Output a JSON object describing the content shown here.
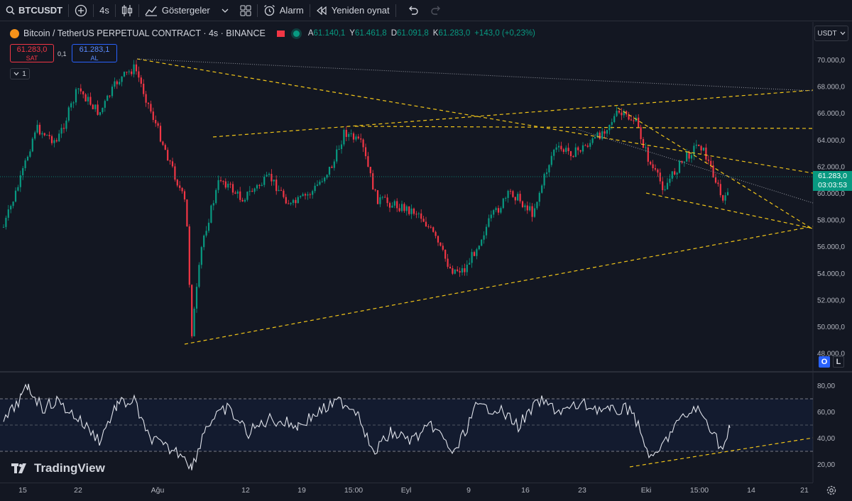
{
  "toolbar": {
    "symbol": "BTCUSDT",
    "interval": "4s",
    "indicators_label": "Göstergeler",
    "alarm_label": "Alarm",
    "replay_label": "Yeniden oynat"
  },
  "legend": {
    "title": "Bitcoin / TetherUS PERPETUAL CONTRACT · 4s · BINANCE",
    "ohlc": [
      {
        "k": "A",
        "v": "61.140,1"
      },
      {
        "k": "Y",
        "v": "61.461,8"
      },
      {
        "k": "D",
        "v": "61.091,8"
      },
      {
        "k": "K",
        "v": "61.283,0"
      }
    ],
    "change": "+143,0 (+0,23%)"
  },
  "trade": {
    "sell_price": "61.283,0",
    "sell_label": "SAT",
    "spread": "0,1",
    "buy_price": "61.283,1",
    "buy_label": "AL",
    "collapse_count": "1"
  },
  "price_axis": {
    "currency": "USDT",
    "labels": [
      "70.000,0",
      "68.000,0",
      "66.000,0",
      "64.000,0",
      "62.000,0",
      "60.000,0",
      "58.000,0",
      "56.000,0",
      "54.000,0",
      "52.000,0",
      "50.000,0",
      "48.000,0"
    ],
    "last_price": "61.283,0",
    "countdown": "03:03:53",
    "o_label": "O",
    "l_label": "L"
  },
  "rsi_axis": {
    "labels": [
      "80,00",
      "60,00",
      "40,00",
      "20,00"
    ]
  },
  "time_axis": {
    "labels": [
      "15",
      "22",
      "Ağu",
      "12",
      "19",
      "15:00",
      "Eyl",
      "9",
      "16",
      "23",
      "Eki",
      "15:00",
      "14",
      "21"
    ]
  },
  "branding": {
    "logo_text": "TradingView"
  },
  "colors": {
    "background": "#131722",
    "up": "#089981",
    "down": "#f23645",
    "trendline": "#f0c419",
    "rsi_line": "#e0e3eb",
    "accent": "#2962ff"
  }
}
